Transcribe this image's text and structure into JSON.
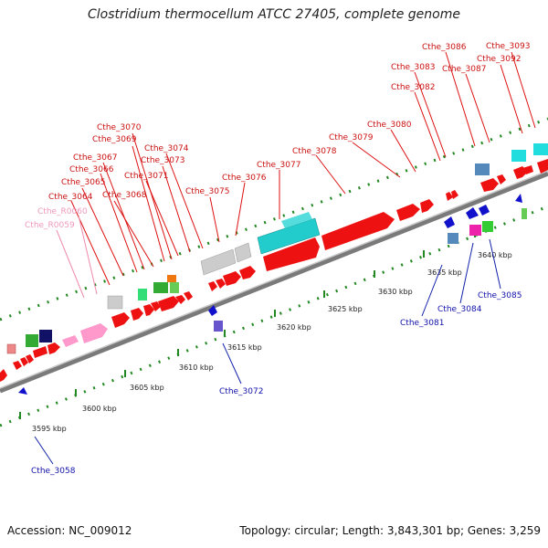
{
  "title": "Clostridium thermocellum ATCC 27405, complete genome",
  "footer": {
    "accession": "Accession: NC_009012",
    "topology": "Topology: circular; Length: 3,843,301 bp; Genes: 3,259"
  },
  "colors": {
    "forward_cds": "#ee1111",
    "label_forward": "#cc1111",
    "label_reverse": "#1111aa",
    "label_rna": "#ee88aa",
    "backbone": "#888888",
    "tick_dots": "#228822"
  },
  "kbp_ticks": [
    "3595 kbp",
    "3600 kbp",
    "3605 kbp",
    "3610 kbp",
    "3615 kbp",
    "3620 kbp",
    "3625 kbp",
    "3630 kbp",
    "3635 kbp",
    "3640 kbp"
  ],
  "forward_labels": [
    "Cthe_3064",
    "Cthe_3065",
    "Cthe_3066",
    "Cthe_3067",
    "Cthe_3068",
    "Cthe_3069",
    "Cthe_3070",
    "Cthe_3071",
    "Cthe_3073",
    "Cthe_3074",
    "Cthe_3075",
    "Cthe_3076",
    "Cthe_3077",
    "Cthe_3078",
    "Cthe_3079",
    "Cthe_3080",
    "Cthe_3082",
    "Cthe_3083",
    "Cthe_3086",
    "Cthe_3087",
    "Cthe_3092",
    "Cthe_3093"
  ],
  "rna_labels": [
    "Cthe_R0060",
    "Cthe_R0059"
  ],
  "reverse_labels": [
    "Cthe_3058",
    "Cthe_3072",
    "Cthe_3081",
    "Cthe_3084",
    "Cthe_3085"
  ]
}
